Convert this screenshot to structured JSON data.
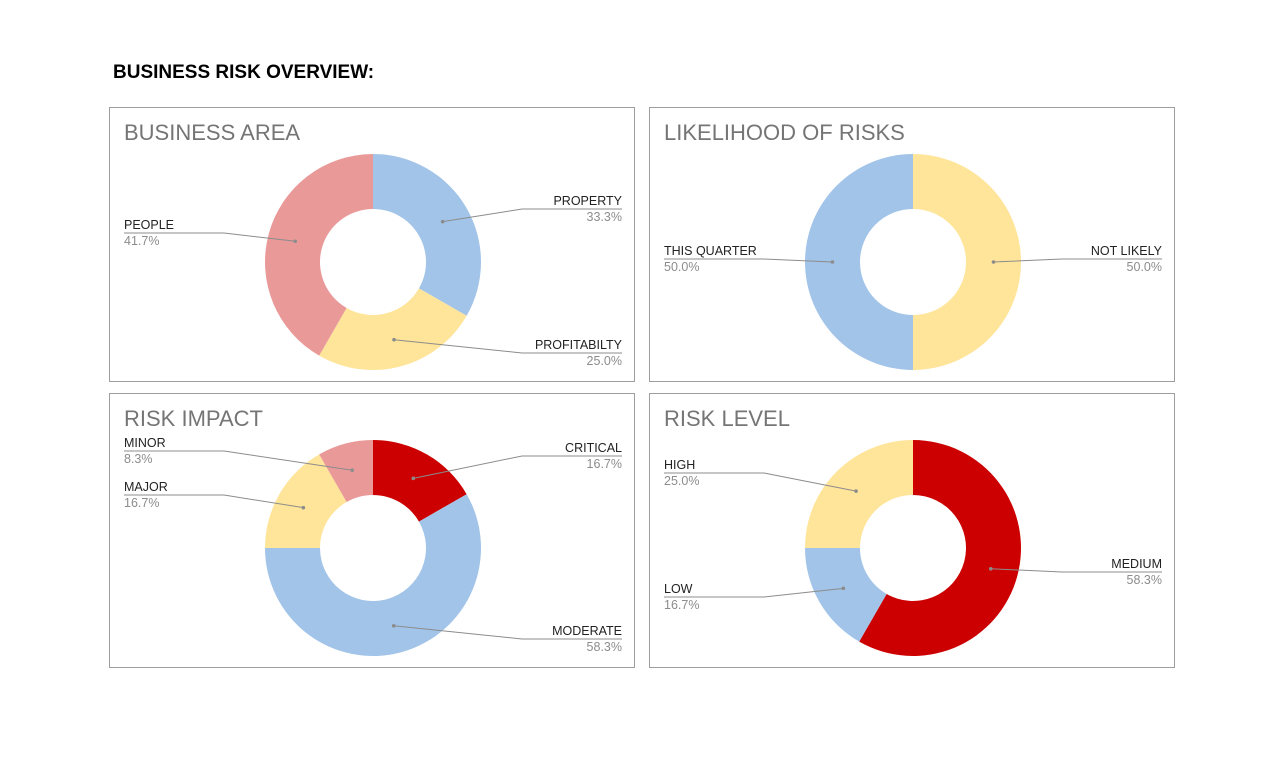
{
  "page": {
    "title": "BUSINESS RISK OVERVIEW:"
  },
  "chart_data": [
    {
      "type": "pie",
      "title": "BUSINESS AREA",
      "categories": [
        "PROPERTY",
        "PROFITABILTY",
        "PEOPLE"
      ],
      "values": [
        33.3,
        25.0,
        41.7
      ],
      "labels": [
        "33.3%",
        "25.0%",
        "41.7%"
      ],
      "colors": [
        "#a2c4e8",
        "#ffe59a",
        "#ea9999"
      ],
      "donut": true
    },
    {
      "type": "pie",
      "title": "LIKELIHOOD OF RISKS",
      "categories": [
        "NOT LIKELY",
        "THIS QUARTER"
      ],
      "values": [
        50.0,
        50.0
      ],
      "labels": [
        "50.0%",
        "50.0%"
      ],
      "colors": [
        "#ffe59a",
        "#a2c4e8"
      ],
      "donut": true
    },
    {
      "type": "pie",
      "title": "RISK IMPACT",
      "categories": [
        "CRITICAL",
        "MODERATE",
        "MAJOR",
        "MINOR"
      ],
      "values": [
        16.7,
        58.3,
        16.7,
        8.3
      ],
      "labels": [
        "16.7%",
        "58.3%",
        "16.7%",
        "8.3%"
      ],
      "colors": [
        "#cc0000",
        "#a2c4e8",
        "#ffe59a",
        "#ea9999"
      ],
      "donut": true
    },
    {
      "type": "pie",
      "title": "RISK LEVEL",
      "categories": [
        "MEDIUM",
        "LOW",
        "HIGH"
      ],
      "values": [
        58.3,
        16.7,
        25.0
      ],
      "labels": [
        "58.3%",
        "16.7%",
        "25.0%"
      ],
      "colors": [
        "#cc0000",
        "#a2c4e8",
        "#ffe59a"
      ],
      "donut": true
    }
  ]
}
